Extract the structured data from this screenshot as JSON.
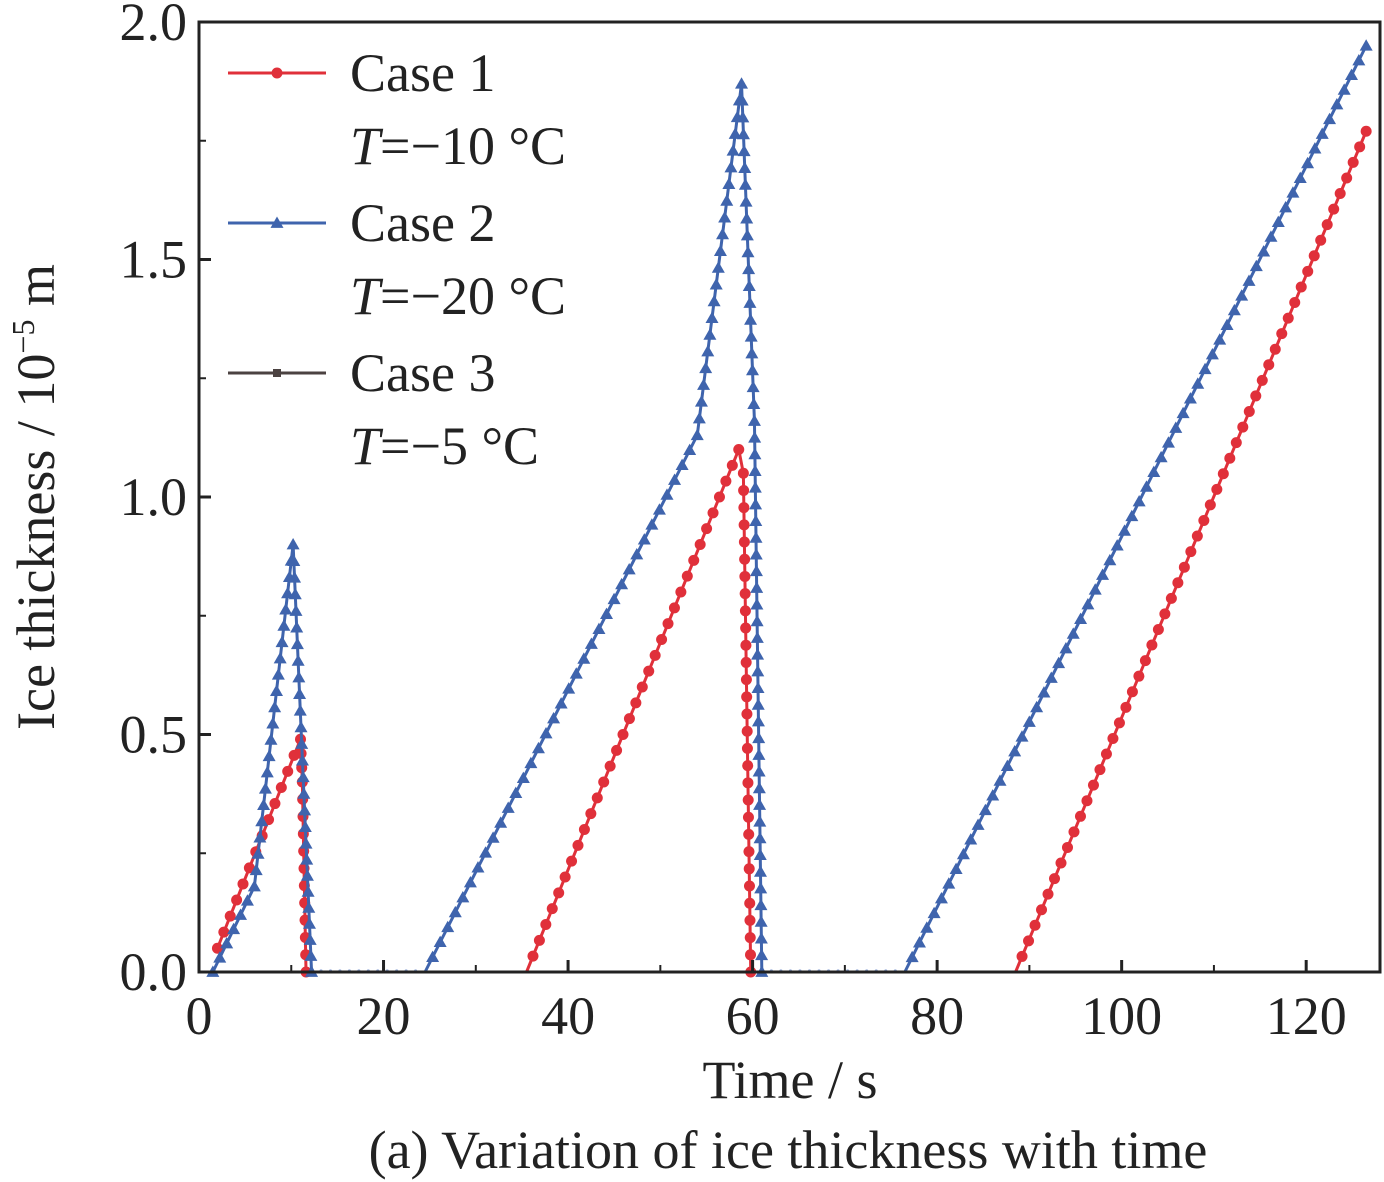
{
  "chart_data": {
    "type": "line",
    "xlabel": "Time / s",
    "ylabel_main": "Ice thickness / 10",
    "ylabel_exp": "−5",
    "ylabel_unit": " m",
    "caption": "(a) Variation of ice thickness with time",
    "xlim": [
      0,
      128
    ],
    "ylim": [
      0,
      2.0
    ],
    "xticks": [
      0,
      20,
      40,
      60,
      80,
      100,
      120
    ],
    "xtick_labels": [
      "0",
      "20",
      "40",
      "60",
      "80",
      "100",
      "120"
    ],
    "yticks": [
      0,
      0.5,
      1.0,
      1.5,
      2.0
    ],
    "ytick_labels": [
      "0.0",
      "0.5",
      "1.0",
      "1.5",
      "2.0"
    ],
    "grid": false,
    "legend_position": "top-left",
    "series": [
      {
        "name": "Case 1",
        "condition_prefix": "T",
        "condition_text": "=−10 °C",
        "color": "#e0303a",
        "marker": "circle",
        "segments": [
          [
            [
              2,
              0.05
            ],
            [
              11,
              0.49
            ],
            [
              11.2,
              0.4
            ],
            [
              11.6,
              0.0
            ]
          ],
          [
            [
              11.6,
              0
            ],
            [
              35.5,
              0
            ],
            [
              58.5,
              1.1
            ],
            [
              59.0,
              1.05
            ],
            [
              59.8,
              0.0
            ]
          ],
          [
            [
              59.8,
              0
            ],
            [
              88.5,
              0
            ],
            [
              126.5,
              1.77
            ]
          ]
        ]
      },
      {
        "name": "Case 2",
        "condition_prefix": "T",
        "condition_text": "=−20 °C",
        "color": "#3f64ad",
        "marker": "triangle",
        "segments": [
          [
            [
              1.5,
              0
            ],
            [
              6,
              0.18
            ],
            [
              10.2,
              0.9
            ],
            [
              11.6,
              0.27
            ],
            [
              12.2,
              0.0
            ]
          ],
          [
            [
              12.2,
              0
            ],
            [
              24.5,
              0
            ],
            [
              54,
              1.13
            ],
            [
              58.8,
              1.87
            ],
            [
              60.2,
              1.16
            ],
            [
              61,
              0.0
            ]
          ],
          [
            [
              61,
              0
            ],
            [
              76.5,
              0
            ],
            [
              126.5,
              1.95
            ]
          ]
        ]
      },
      {
        "name": "Case 3",
        "condition_prefix": "T",
        "condition_text": "=−5 °C",
        "color": "#4b4241",
        "marker": "square",
        "segments": [
          [
            [
              0,
              0
            ],
            [
              127,
              0
            ]
          ]
        ]
      }
    ]
  }
}
